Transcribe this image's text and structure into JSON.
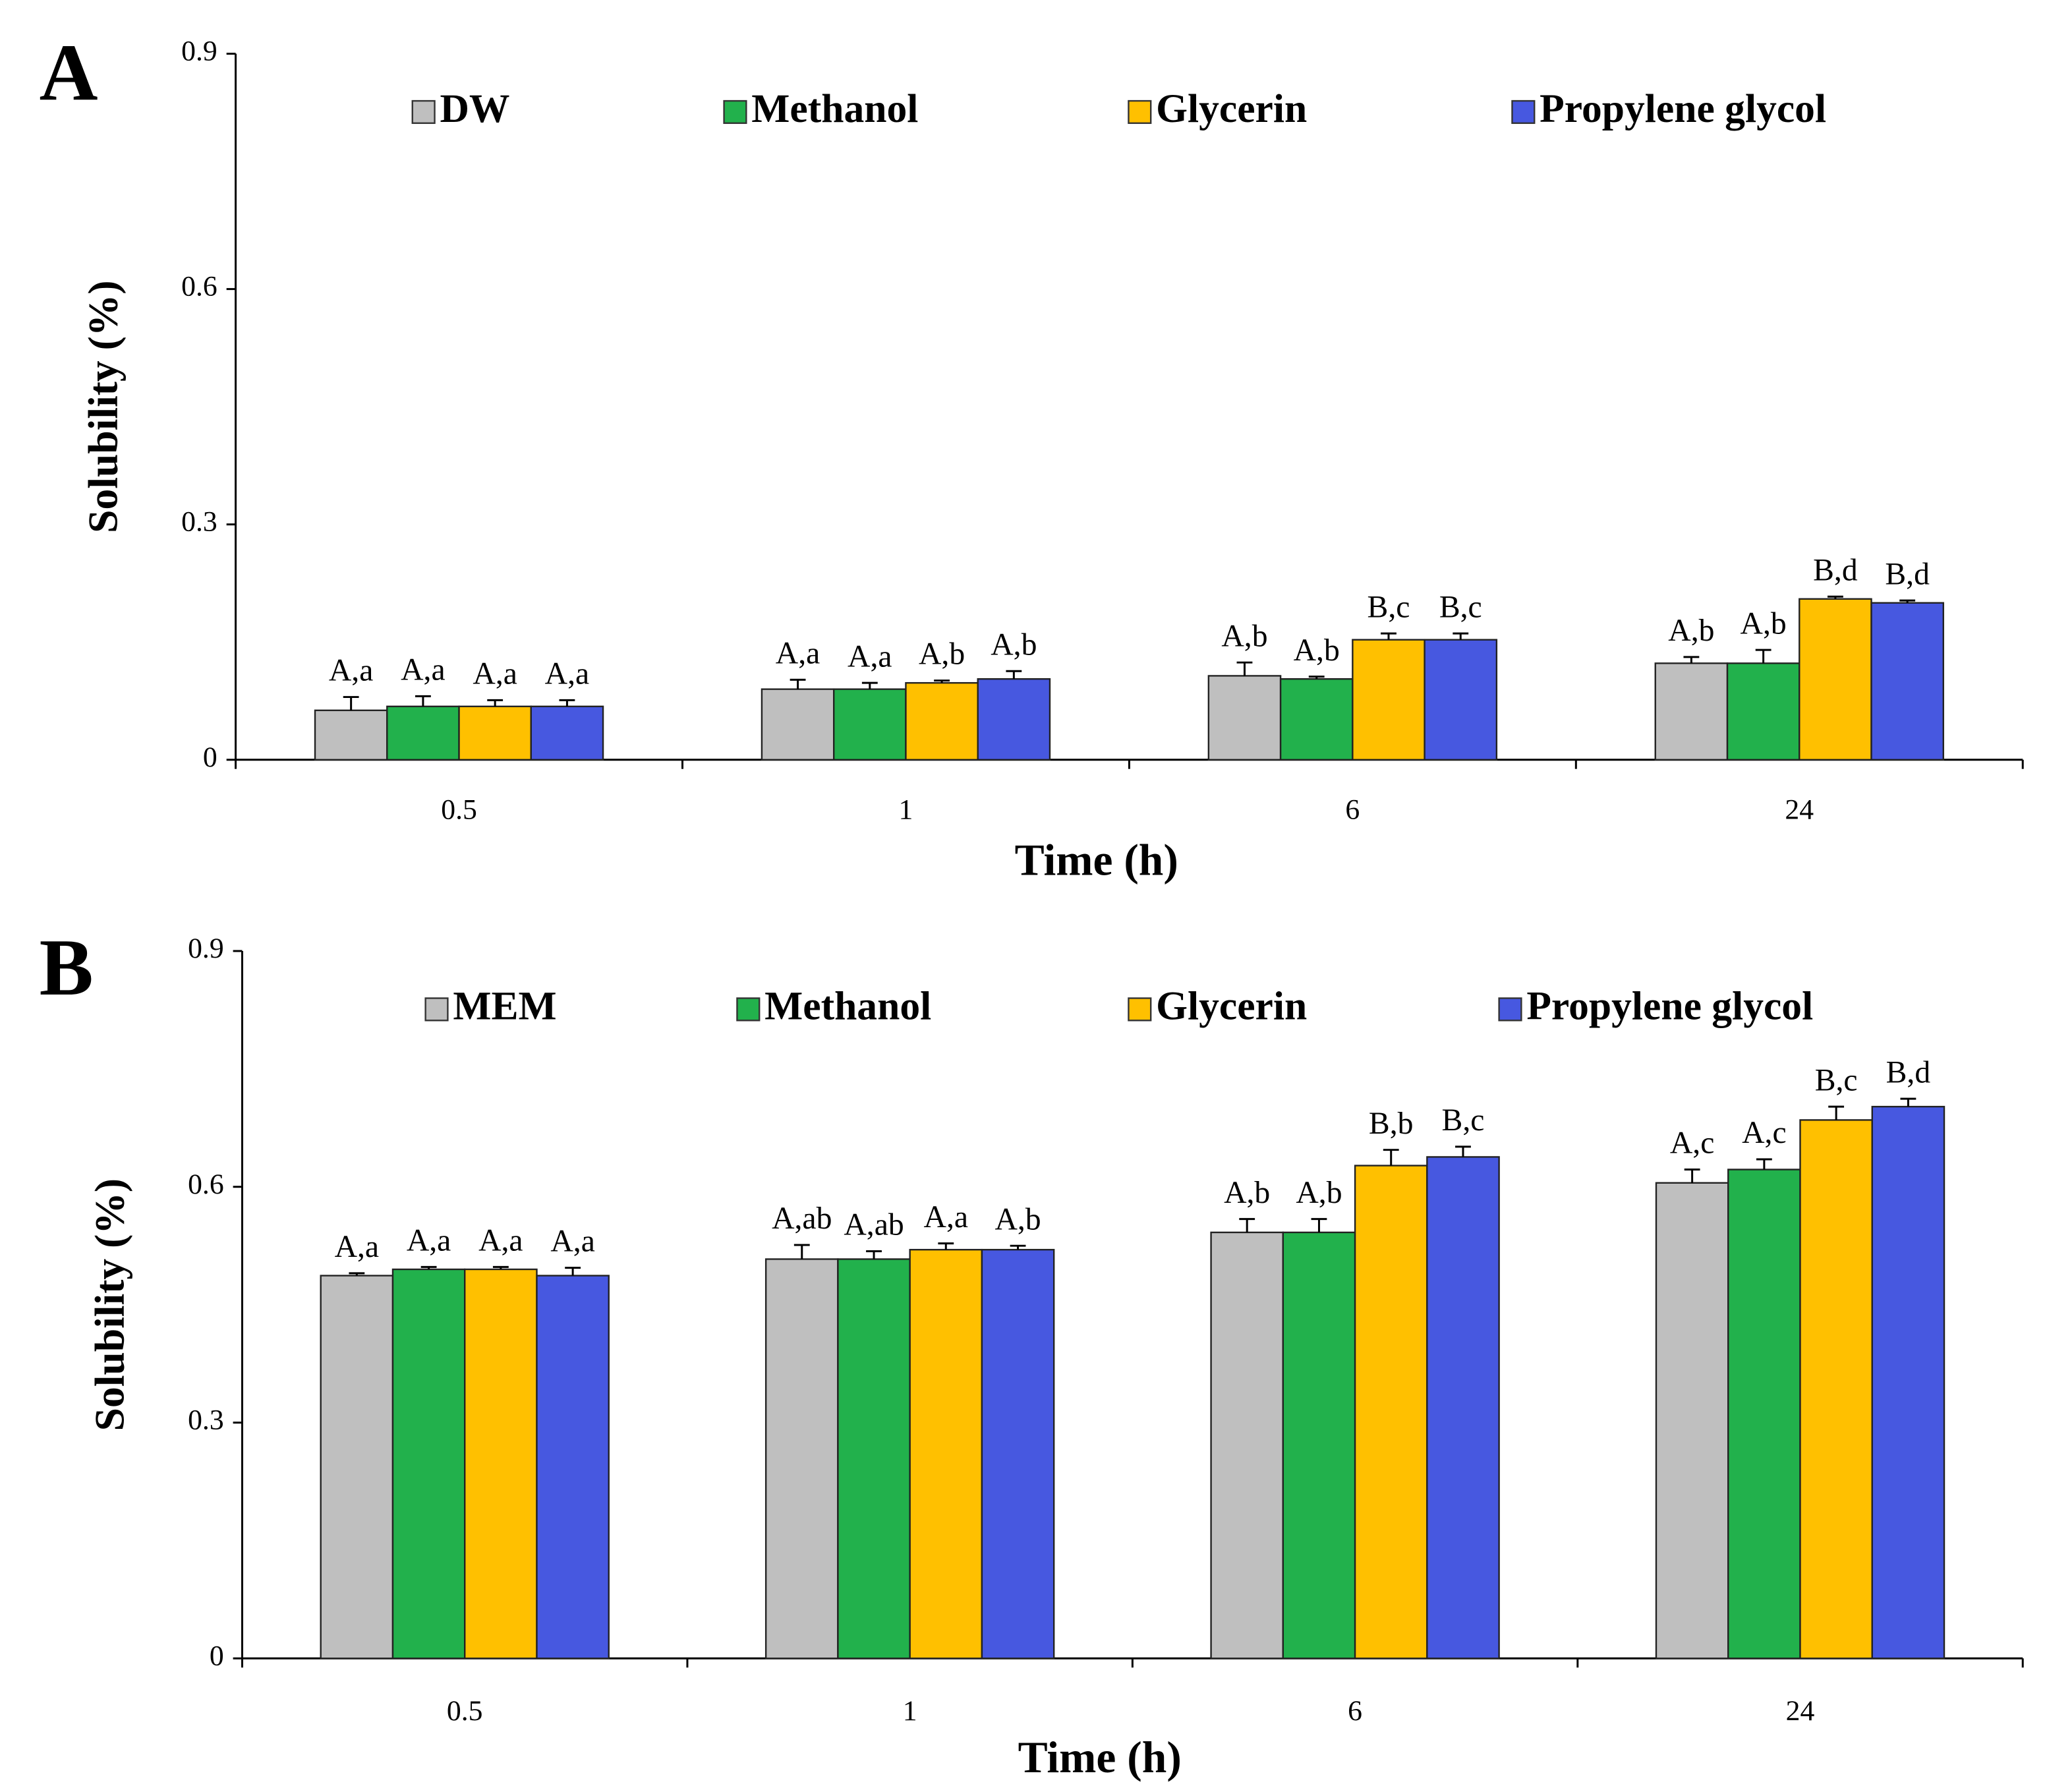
{
  "chart_data": [
    {
      "type": "bar",
      "panel": "A",
      "x_label": "Time (h)",
      "y_label": "Solubility (%)",
      "categories": [
        "0.5",
        "1",
        "6",
        "24"
      ],
      "ylim": [
        0,
        0.9
      ],
      "yticks": [
        0,
        0.3,
        0.6,
        0.9
      ],
      "series": [
        {
          "name": "DW",
          "color": "#bfbfbf",
          "values": [
            0.063,
            0.09,
            0.107,
            0.123
          ],
          "errors": [
            0.017,
            0.012,
            0.017,
            0.008
          ],
          "letters": [
            "A,a",
            "A,a",
            "A,b",
            "A,b"
          ]
        },
        {
          "name": "Methanol",
          "color": "#22b14c",
          "values": [
            0.068,
            0.09,
            0.103,
            0.123
          ],
          "errors": [
            0.013,
            0.008,
            0.003,
            0.017
          ],
          "letters": [
            "A,a",
            "A,a",
            "A,b",
            "A,b"
          ]
        },
        {
          "name": "Glycerin",
          "color": "#ffc000",
          "values": [
            0.068,
            0.098,
            0.153,
            0.205
          ],
          "errors": [
            0.008,
            0.003,
            0.008,
            0.003
          ],
          "letters": [
            "A,a",
            "A,b",
            "B,c",
            "B,d"
          ]
        },
        {
          "name": "Propylene glycol",
          "color": "#4758e0",
          "values": [
            0.068,
            0.103,
            0.153,
            0.2
          ],
          "errors": [
            0.008,
            0.01,
            0.008,
            0.003
          ],
          "letters": [
            "A,a",
            "A,b",
            "B,c",
            "B,d"
          ]
        }
      ]
    },
    {
      "type": "bar",
      "panel": "B",
      "x_label": "Time (h)",
      "y_label": "Solubility (%)",
      "categories": [
        "0.5",
        "1",
        "6",
        "24"
      ],
      "ylim": [
        0,
        0.9
      ],
      "yticks": [
        0,
        0.3,
        0.6,
        0.9
      ],
      "series": [
        {
          "name": "MEM",
          "color": "#bfbfbf",
          "values": [
            0.487,
            0.508,
            0.542,
            0.605
          ],
          "errors": [
            0.003,
            0.018,
            0.017,
            0.017
          ],
          "letters": [
            "A,a",
            "A,ab",
            "A,b",
            "A,c"
          ]
        },
        {
          "name": "Methanol",
          "color": "#22b14c",
          "values": [
            0.495,
            0.508,
            0.542,
            0.622
          ],
          "errors": [
            0.003,
            0.01,
            0.017,
            0.013
          ],
          "letters": [
            "A,a",
            "A,ab",
            "A,b",
            "A,c"
          ]
        },
        {
          "name": "Glycerin",
          "color": "#ffc000",
          "values": [
            0.495,
            0.52,
            0.627,
            0.685
          ],
          "errors": [
            0.003,
            0.008,
            0.02,
            0.017
          ],
          "letters": [
            "A,a",
            "A,a",
            "B,b",
            "B,c"
          ]
        },
        {
          "name": "Propylene glycol",
          "color": "#4758e0",
          "values": [
            0.487,
            0.52,
            0.638,
            0.702
          ],
          "errors": [
            0.01,
            0.005,
            0.013,
            0.01
          ],
          "letters": [
            "A,a",
            "A,b",
            "B,c",
            "B,d"
          ]
        }
      ]
    }
  ]
}
